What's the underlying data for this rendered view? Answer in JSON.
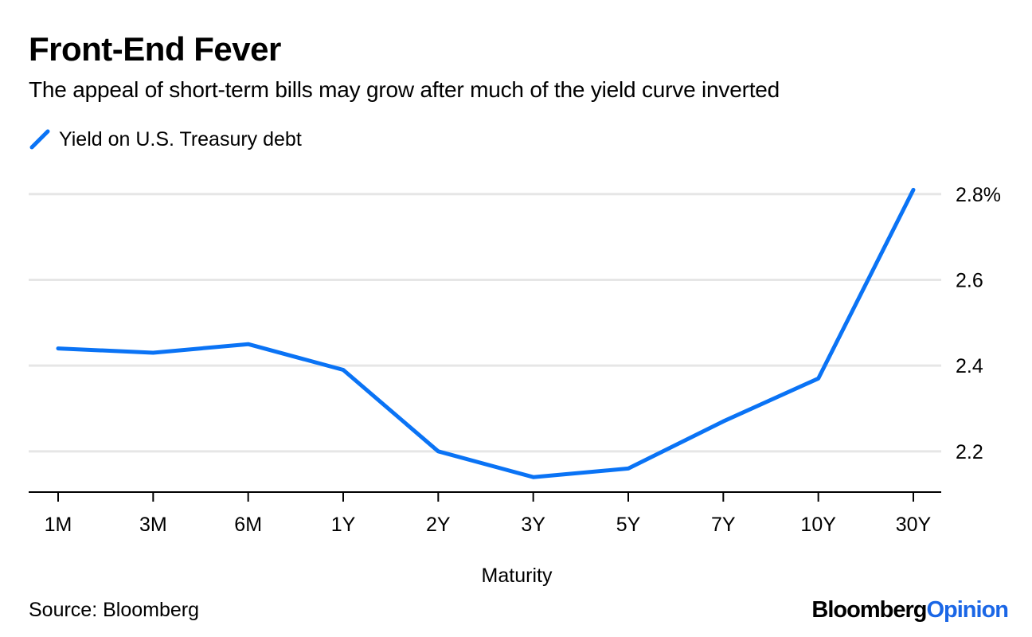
{
  "header": {
    "title": "Front-End Fever",
    "subtitle": "The appeal of short-term bills may grow after much of the yield curve inverted"
  },
  "footer": {
    "source": "Source: Bloomberg",
    "brand_part1": "Bloomberg",
    "brand_part2": "Opinion"
  },
  "colors": {
    "line": "#0a73f5",
    "grid": "#e6e6e6",
    "axis": "#000000",
    "brand_accent": "#1a66e6"
  },
  "chart_data": {
    "type": "line",
    "title": "Front-End Fever",
    "subtitle": "The appeal of short-term bills may grow after much of the yield curve inverted",
    "xlabel": "Maturity",
    "ylabel": "",
    "categories": [
      "1M",
      "3M",
      "6M",
      "1Y",
      "2Y",
      "3Y",
      "5Y",
      "7Y",
      "10Y",
      "30Y"
    ],
    "series": [
      {
        "name": "Yield on U.S. Treasury debt",
        "values": [
          2.44,
          2.43,
          2.45,
          2.39,
          2.2,
          2.14,
          2.16,
          2.27,
          2.37,
          2.81
        ]
      }
    ],
    "yticks": [
      2.2,
      2.4,
      2.6,
      2.8
    ],
    "ytick_labels": [
      "2.2",
      "2.4",
      "2.6",
      "2.8%"
    ],
    "ylim": [
      2.105,
      2.82
    ],
    "grid": true,
    "legend_position": "top-left",
    "y_axis_side": "right"
  }
}
